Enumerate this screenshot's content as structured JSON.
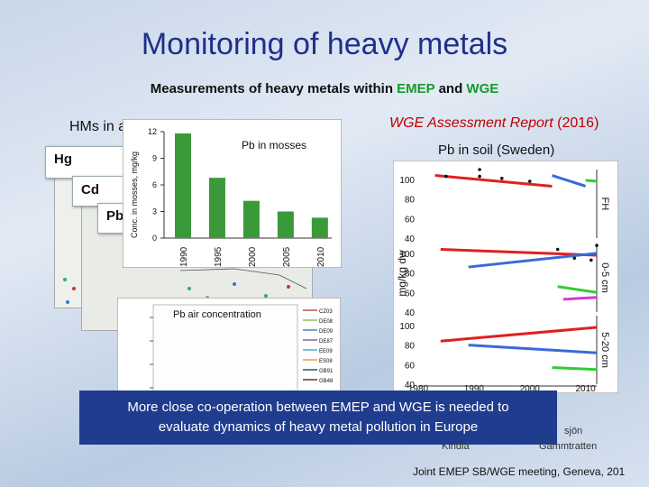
{
  "slide": {
    "title": "Monitoring of heavy metals",
    "subtitle_prefix": "Measurements of heavy metals within ",
    "subtitle_emep": "EMEP",
    "subtitle_mid": " and ",
    "subtitle_wge": "WGE",
    "hms_label": "HMs in a",
    "metal_labels": [
      "Hg",
      "Cd",
      "Pb"
    ],
    "wge_report": "WGE Assessment Report",
    "wge_year": "(2016)",
    "soil_title": "Pb in soil (Sweden)",
    "banner_line1": "More close co-operation between EMEP and WGE is needed to",
    "banner_line2": "evaluate dynamics of heavy metal  pollution in Europe",
    "footer": "Joint EMEP SB/WGE meeting, Geneva, 201",
    "loc_left": "Kindla",
    "loc_right": "Gammtratten",
    "loc_top": "sjön"
  },
  "colors": {
    "title": "#1f2f8a",
    "bars": "#3a9a3a",
    "banner": "#1f3c8f",
    "wge": "#c00000"
  },
  "chart_data": [
    {
      "type": "bar",
      "title": "Pb in mosses",
      "ylabel": "Conc. in mosses, mg/kg",
      "categories": [
        "1990",
        "1995",
        "2000",
        "2005",
        "2010"
      ],
      "values": [
        11.8,
        6.8,
        4.2,
        3.0,
        2.3
      ],
      "ylim": [
        0,
        12
      ],
      "yticks": [
        0,
        3,
        6,
        9,
        12
      ]
    },
    {
      "type": "line",
      "title": "Pb air concentration",
      "series": [
        {
          "name": "CZ03",
          "color": "#c0504d"
        },
        {
          "name": "DE08",
          "color": "#9bbb59"
        },
        {
          "name": "DE09",
          "color": "#4f81bd"
        },
        {
          "name": "DE87",
          "color": "#8064a2"
        },
        {
          "name": "EE09",
          "color": "#4bacc6"
        },
        {
          "name": "ES08",
          "color": "#f79646"
        },
        {
          "name": "GB91",
          "color": "#2c4d75"
        },
        {
          "name": "GB48",
          "color": "#772c2a"
        }
      ]
    },
    {
      "type": "scatter",
      "ylabel": "mg/kg dw",
      "x_ticks": [
        "1980",
        "1990",
        "2000",
        "2010"
      ],
      "xlim": [
        1980,
        2012
      ],
      "panels": [
        {
          "name": "FH",
          "yticks": [
            40,
            60,
            80,
            100
          ],
          "points": [
            [
              1991,
              103
            ],
            [
              1995,
              101
            ],
            [
              2000,
              98
            ],
            [
              1985,
              103
            ],
            [
              1991,
              110
            ]
          ],
          "segments": [
            {
              "from": [
                1983,
                104
              ],
              "to": [
                2004,
                93
              ],
              "color": "#e02020"
            },
            {
              "from": [
                2004,
                104
              ],
              "to": [
                2010,
                93
              ],
              "color": "#3a6ad8"
            },
            {
              "from": [
                2010,
                99
              ],
              "to": [
                2012,
                98
              ],
              "color": "#33cc33"
            }
          ]
        },
        {
          "name": "0-5 cm",
          "yticks": [
            40,
            60,
            80,
            100
          ],
          "points": [
            [
              2005,
              104
            ],
            [
              2008,
              95
            ],
            [
              2011,
              93
            ],
            [
              2012,
              108
            ]
          ],
          "segments": [
            {
              "from": [
                1984,
                104
              ],
              "to": [
                2012,
                98
              ],
              "color": "#e02020"
            },
            {
              "from": [
                1989,
                86
              ],
              "to": [
                2012,
                100
              ],
              "color": "#3a6ad8"
            },
            {
              "from": [
                2005,
                66
              ],
              "to": [
                2012,
                60
              ],
              "color": "#33cc33"
            },
            {
              "from": [
                2006,
                53
              ],
              "to": [
                2012,
                55
              ],
              "color": "#dd33dd"
            }
          ]
        },
        {
          "name": "5-20 cm",
          "yticks": [
            40,
            60,
            80,
            100
          ],
          "points": [],
          "segments": [
            {
              "from": [
                1984,
                84
              ],
              "to": [
                2012,
                98
              ],
              "color": "#e02020"
            },
            {
              "from": [
                1989,
                80
              ],
              "to": [
                2012,
                72
              ],
              "color": "#3a6ad8"
            },
            {
              "from": [
                2004,
                57
              ],
              "to": [
                2012,
                55
              ],
              "color": "#33cc33"
            }
          ]
        }
      ]
    }
  ]
}
